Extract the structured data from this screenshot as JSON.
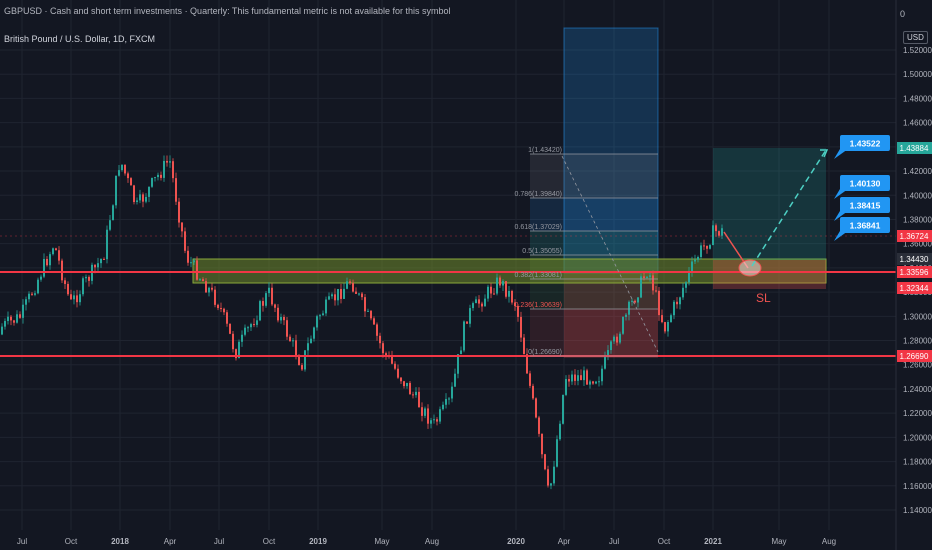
{
  "header": {
    "source_line": "GBPUSD · Cash and short term investments · Quarterly: This fundamental metric is not available for this symbol",
    "instrument": "British Pound / U.S. Dollar, 1D, FXCM",
    "zero_value": "0",
    "currency": "USD"
  },
  "colors": {
    "background": "#131722",
    "grid": "#1f2430",
    "up": "#26a69a",
    "down": "#ef5350",
    "level_line": "#f23645",
    "label_blue": "#2196f3",
    "zone_green": "#6f8a2a"
  },
  "chart_data": {
    "type": "candlestick",
    "symbol": "GBPUSD",
    "interval": "1D",
    "ylim": [
      1.13,
      1.535
    ],
    "y_ticks": [
      "1.52000",
      "1.50000",
      "1.48000",
      "1.46000",
      "1.44000",
      "1.42000",
      "1.40000",
      "1.38000",
      "1.36000",
      "1.34000",
      "1.32000",
      "1.30000",
      "1.28000",
      "1.26000",
      "1.24000",
      "1.22000",
      "1.20000",
      "1.18000",
      "1.16000",
      "1.14000"
    ],
    "x_ticks": [
      "Jul",
      "Oct",
      "2018",
      "Apr",
      "Jul",
      "Oct",
      "2019",
      "May",
      "Aug",
      "2020",
      "Apr",
      "Jul",
      "Oct",
      "2021",
      "May",
      "Aug"
    ],
    "price_path_keypoints": [
      [
        "2017-05",
        1.285
      ],
      [
        "2017-07",
        1.3
      ],
      [
        "2017-09",
        1.36
      ],
      [
        "2017-10",
        1.31
      ],
      [
        "2017-12",
        1.35
      ],
      [
        "2018-01",
        1.43
      ],
      [
        "2018-02",
        1.39
      ],
      [
        "2018-04",
        1.43
      ],
      [
        "2018-05",
        1.35
      ],
      [
        "2018-07",
        1.31
      ],
      [
        "2018-08",
        1.27
      ],
      [
        "2018-10",
        1.32
      ],
      [
        "2018-12",
        1.26
      ],
      [
        "2019-01",
        1.3
      ],
      [
        "2019-03",
        1.33
      ],
      [
        "2019-05",
        1.27
      ],
      [
        "2019-08",
        1.21
      ],
      [
        "2019-09",
        1.23
      ],
      [
        "2019-10",
        1.3
      ],
      [
        "2019-12",
        1.33
      ],
      [
        "2020-01",
        1.31
      ],
      [
        "2020-03",
        1.15
      ],
      [
        "2020-04",
        1.25
      ],
      [
        "2020-06",
        1.25
      ],
      [
        "2020-07",
        1.28
      ],
      [
        "2020-09",
        1.34
      ],
      [
        "2020-10",
        1.29
      ],
      [
        "2020-12",
        1.35
      ],
      [
        "2021-01",
        1.37
      ]
    ],
    "horizontal_levels": [
      "1.33596",
      "1.26690"
    ],
    "fibonacci": [
      {
        "label": "1(1.43420)"
      },
      {
        "label": "0.786(1.39840)"
      },
      {
        "label": "0.618(1.37029)"
      },
      {
        "label": "0.5(1.35055)"
      },
      {
        "label": "0.382(1.33081)"
      },
      {
        "label": "0.236(1.30639)"
      },
      {
        "label": "0(1.26690)"
      }
    ],
    "price_labels": [
      {
        "text": "1.43884",
        "style": "teal"
      },
      {
        "text": "1.36724",
        "style": "red"
      },
      {
        "text": "1.34430",
        "style": "dark"
      },
      {
        "text": "1.33596",
        "style": "red"
      },
      {
        "text": "1.32344",
        "style": "red"
      },
      {
        "text": "1.26690",
        "style": "red"
      }
    ],
    "target_callouts": [
      "1.43522",
      "1.40130",
      "1.38415",
      "1.36841"
    ],
    "annotations": {
      "stop_loss": "SL"
    }
  }
}
